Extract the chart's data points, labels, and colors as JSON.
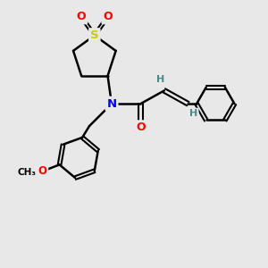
{
  "background_color": "#e8e8e8",
  "atom_colors": {
    "S": "#cccc00",
    "O": "#ff0000",
    "N": "#0000ff",
    "C": "#000000",
    "H": "#4a8a8a"
  },
  "bond_color": "#000000",
  "figsize": [
    3.0,
    3.0
  ],
  "dpi": 100
}
